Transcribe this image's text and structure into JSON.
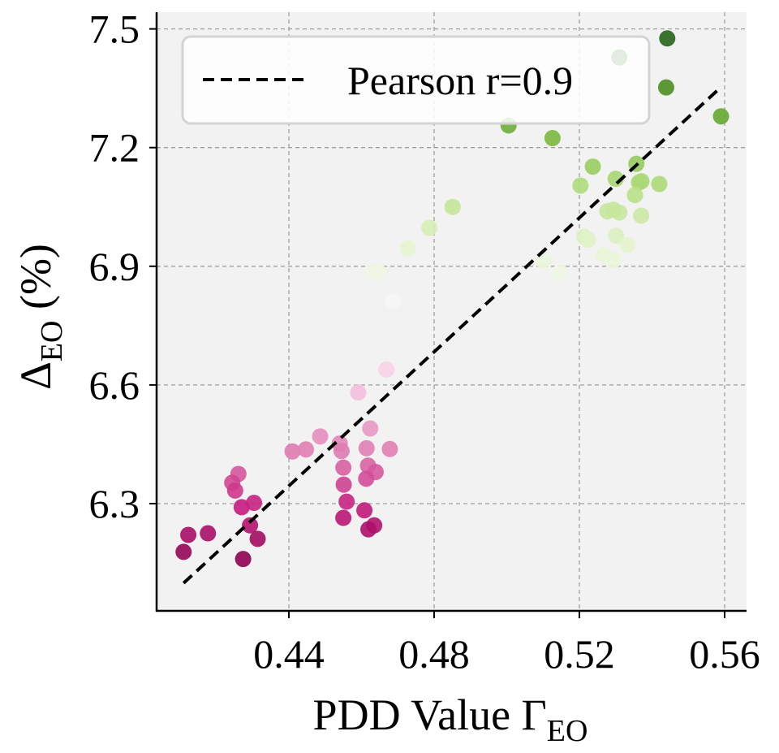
{
  "chart_data": {
    "type": "scatter",
    "xlabel": "PDD Value Γ",
    "xlabel_sub": "EO",
    "ylabel": "Δ",
    "ylabel_sub": "EO",
    "ylabel_suffix": " (%)",
    "xlim": [
      0.405,
      0.566
    ],
    "ylim": [
      6.06,
      7.54
    ],
    "x_ticks": [
      0.44,
      0.48,
      0.52,
      0.56
    ],
    "x_tick_labels": [
      "0.44",
      "0.48",
      "0.52",
      "0.56"
    ],
    "y_ticks": [
      6.3,
      6.6,
      6.9,
      7.2,
      7.5
    ],
    "y_tick_labels": [
      "6.3",
      "6.6",
      "6.9",
      "7.2",
      "7.5"
    ],
    "grid": true,
    "background": "#f2f2f2",
    "colormap": "PiYG",
    "color_by": "y",
    "legend": {
      "position": "top-left",
      "entries": [
        {
          "label": "Pearson r=0.9",
          "style": "dashed-line",
          "color": "#000000"
        }
      ]
    },
    "fit_line": {
      "x": [
        0.411,
        0.559
      ],
      "y": [
        6.099,
        7.353
      ]
    },
    "points": [
      [
        0.4669,
        6.639
      ],
      [
        0.4591,
        6.581
      ],
      [
        0.4624,
        6.49
      ],
      [
        0.4486,
        6.47
      ],
      [
        0.454,
        6.452
      ],
      [
        0.441,
        6.432
      ],
      [
        0.4447,
        6.437
      ],
      [
        0.4545,
        6.433
      ],
      [
        0.4614,
        6.44
      ],
      [
        0.4678,
        6.438
      ],
      [
        0.455,
        6.391
      ],
      [
        0.4618,
        6.396
      ],
      [
        0.4639,
        6.38
      ],
      [
        0.4613,
        6.363
      ],
      [
        0.4551,
        6.348
      ],
      [
        0.4559,
        6.305
      ],
      [
        0.4608,
        6.283
      ],
      [
        0.455,
        6.264
      ],
      [
        0.4635,
        6.245
      ],
      [
        0.4619,
        6.235
      ],
      [
        0.4261,
        6.375
      ],
      [
        0.4244,
        6.353
      ],
      [
        0.4252,
        6.333
      ],
      [
        0.427,
        6.291
      ],
      [
        0.4304,
        6.302
      ],
      [
        0.4293,
        6.245
      ],
      [
        0.4314,
        6.211
      ],
      [
        0.4274,
        6.16
      ],
      [
        0.4123,
        6.221
      ],
      [
        0.4177,
        6.225
      ],
      [
        0.411,
        6.178
      ],
      [
        0.4851,
        7.05
      ],
      [
        0.4787,
        6.997
      ],
      [
        0.4728,
        6.945
      ],
      [
        0.463,
        6.885
      ],
      [
        0.4648,
        6.885
      ],
      [
        0.4688,
        6.812
      ],
      [
        0.5102,
        6.913
      ],
      [
        0.5146,
        6.885
      ],
      [
        0.5442,
        7.476
      ],
      [
        0.531,
        7.428
      ],
      [
        0.5439,
        7.352
      ],
      [
        0.559,
        7.279
      ],
      [
        0.5005,
        7.256
      ],
      [
        0.5126,
        7.224
      ],
      [
        0.5237,
        7.152
      ],
      [
        0.5357,
        7.159
      ],
      [
        0.5203,
        7.104
      ],
      [
        0.53,
        7.121
      ],
      [
        0.5371,
        7.115
      ],
      [
        0.5364,
        7.112
      ],
      [
        0.542,
        7.108
      ],
      [
        0.5353,
        7.08
      ],
      [
        0.5277,
        7.039
      ],
      [
        0.531,
        7.036
      ],
      [
        0.5294,
        7.043
      ],
      [
        0.537,
        7.028
      ],
      [
        0.5213,
        6.975
      ],
      [
        0.5224,
        6.967
      ],
      [
        0.5301,
        6.977
      ],
      [
        0.5333,
        6.954
      ],
      [
        0.5268,
        6.928
      ],
      [
        0.5295,
        6.916
      ]
    ]
  }
}
